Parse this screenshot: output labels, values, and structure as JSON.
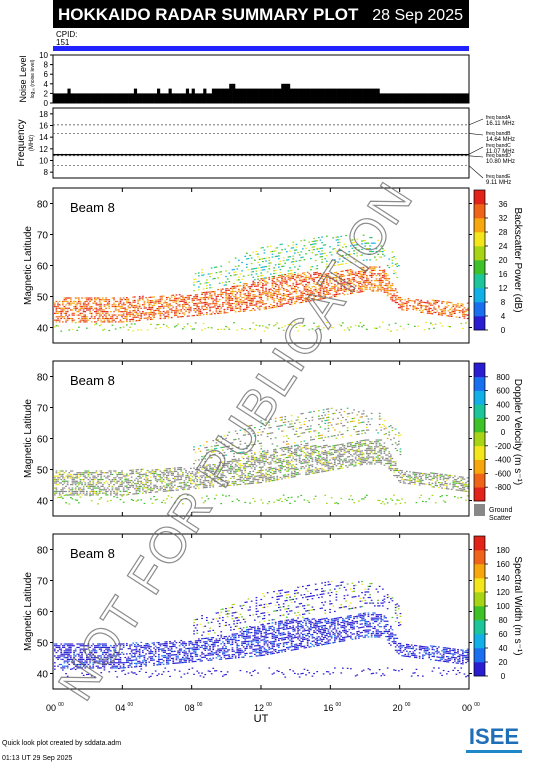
{
  "header": {
    "title": "HOKKAIDO RADAR SUMMARY PLOT",
    "date": "28 Sep 2025"
  },
  "cpid": {
    "label": "CPID:",
    "value": "151"
  },
  "colors": {
    "header_bg": "#000000",
    "header_text": "#ffffff",
    "cpid_bar": "#2222ff",
    "ground_scatter": "#888888"
  },
  "noise_panel": {
    "ylabel": "Noise Level",
    "ylabel_sub": "log₁₀ (noise level)",
    "yticks": [
      "0",
      "2",
      "4",
      "6",
      "8",
      "10"
    ]
  },
  "freq_panel": {
    "ylabel": "Frequency",
    "ylabel_sub": "(MHz)",
    "yticks": [
      "8",
      "10",
      "12",
      "14",
      "16",
      "18"
    ],
    "bands": [
      {
        "label": "freq bandA",
        "value": "16.11 MHz"
      },
      {
        "label": "freq bandB",
        "value": "14.64 MHz"
      },
      {
        "label": "freq bandC",
        "value": "11.07 MHz"
      },
      {
        "label": "freq bandD",
        "value": "10.80 MHz"
      },
      {
        "label": "freq bandE",
        "value": "9.11 MHz"
      }
    ]
  },
  "panels": [
    {
      "beam": "Beam  8",
      "ylabel": "Magnetic Latitude",
      "cbar_label": "Backscatter Power (dB)",
      "cbar_ticks": [
        "0",
        "4",
        "8",
        "12",
        "16",
        "20",
        "24",
        "28",
        "32",
        "36"
      ],
      "cbar_colors": [
        "#2a1cd0",
        "#1a6ff0",
        "#13b0e8",
        "#1bc79a",
        "#3fc12a",
        "#a8d416",
        "#f3e61a",
        "#f6a70e",
        "#f0641a",
        "#e2231a"
      ]
    },
    {
      "beam": "Beam  8",
      "ylabel": "Magnetic Latitude",
      "cbar_label": "Doppler Velocity (m s⁻¹)",
      "cbar_ticks": [
        "-800",
        "-600",
        "-400",
        "-200",
        "0",
        "200",
        "400",
        "600",
        "800"
      ],
      "cbar_colors": [
        "#e2231a",
        "#f0641a",
        "#f6a70e",
        "#f3e61a",
        "#a8d416",
        "#3fc12a",
        "#1bc79a",
        "#13b0e8",
        "#1a6ff0",
        "#2a1cd0"
      ],
      "ground_label_1": "Ground",
      "ground_label_2": "Scatter"
    },
    {
      "beam": "Beam  8",
      "ylabel": "Magnetic Latitude",
      "cbar_label": "Spectral Width (m s⁻¹)",
      "cbar_ticks": [
        "0",
        "20",
        "40",
        "60",
        "80",
        "100",
        "120",
        "140",
        "160",
        "180"
      ],
      "cbar_colors": [
        "#2a1cd0",
        "#1a6ff0",
        "#13b0e8",
        "#1bc79a",
        "#3fc12a",
        "#a8d416",
        "#f3e61a",
        "#f6a70e",
        "#f0641a",
        "#e2231a"
      ]
    }
  ],
  "lat_ticks": [
    "40",
    "50",
    "60",
    "70",
    "80"
  ],
  "time_ticks": [
    "00",
    "04",
    "08",
    "12",
    "16",
    "20",
    "00"
  ],
  "time_tick_sup": "00",
  "xlabel": "UT",
  "footer": {
    "credit": "Quick look plot created by sddata.adm",
    "timestamp": "01:13 UT 29 Sep 2025",
    "logo": "ISEE"
  },
  "watermark": "NOT FOR PUBLICATION",
  "chart_data": {
    "type": "heatmap",
    "title": "HOKKAIDO RADAR SUMMARY PLOT",
    "xlabel": "UT",
    "ylabel": "Magnetic Latitude",
    "xlim": [
      0,
      24
    ],
    "ylim": [
      35,
      85
    ],
    "noise": [
      2,
      2,
      2,
      2,
      2,
      3,
      2,
      2,
      2,
      2,
      2,
      2,
      2,
      2,
      2,
      2,
      2,
      2,
      2,
      2,
      2,
      2,
      2,
      2,
      2,
      2,
      2,
      2,
      3,
      2,
      2,
      2,
      2,
      2,
      2,
      2,
      3,
      2,
      2,
      2,
      3,
      2,
      2,
      2,
      2,
      2,
      3,
      2,
      3,
      2,
      2,
      2,
      3,
      2,
      2,
      3,
      3,
      3,
      3,
      3,
      3,
      4,
      4,
      3,
      3,
      3,
      3,
      3,
      3,
      3,
      3,
      3,
      3,
      3,
      3,
      3,
      3,
      3,
      3,
      4,
      4,
      4,
      3,
      3,
      3,
      3,
      3,
      3,
      3,
      3,
      3,
      3,
      3,
      3,
      3,
      3,
      3,
      3,
      3,
      3,
      3,
      3,
      3,
      3,
      3,
      3,
      3,
      3,
      3,
      3,
      3,
      3,
      3,
      2,
      2,
      2,
      2,
      2,
      2,
      2,
      2,
      2,
      2,
      2,
      2,
      2,
      2,
      2,
      2,
      2,
      2,
      2,
      2,
      2,
      2,
      2,
      2,
      2,
      2,
      2,
      2,
      2,
      2,
      2
    ],
    "noise_ylim": [
      0,
      10
    ],
    "freq_ylim": [
      7,
      19
    ],
    "freq_bands_mhz": [
      16.11,
      14.64,
      11.07,
      10.8,
      9.11
    ],
    "freq_trace": [
      {
        "x": [
          0,
          24
        ],
        "y": [
          11.0,
          11.0
        ]
      }
    ],
    "power_regions": [
      {
        "x": [
          0,
          4,
          8,
          10,
          12,
          14,
          16,
          18,
          19,
          20,
          24
        ],
        "y_low": [
          42,
          42,
          44,
          45,
          46,
          48,
          50,
          52,
          52,
          46,
          43
        ],
        "y_high": [
          50,
          50,
          51,
          53,
          56,
          58,
          58,
          60,
          60,
          50,
          48
        ],
        "level": "strong"
      },
      {
        "x": [
          8,
          10,
          12,
          14,
          16,
          18,
          19,
          20
        ],
        "y_low": [
          52,
          54,
          56,
          58,
          60,
          62,
          62,
          55
        ],
        "y_high": [
          58,
          62,
          66,
          68,
          70,
          70,
          68,
          62
        ],
        "level": "medium"
      }
    ]
  }
}
